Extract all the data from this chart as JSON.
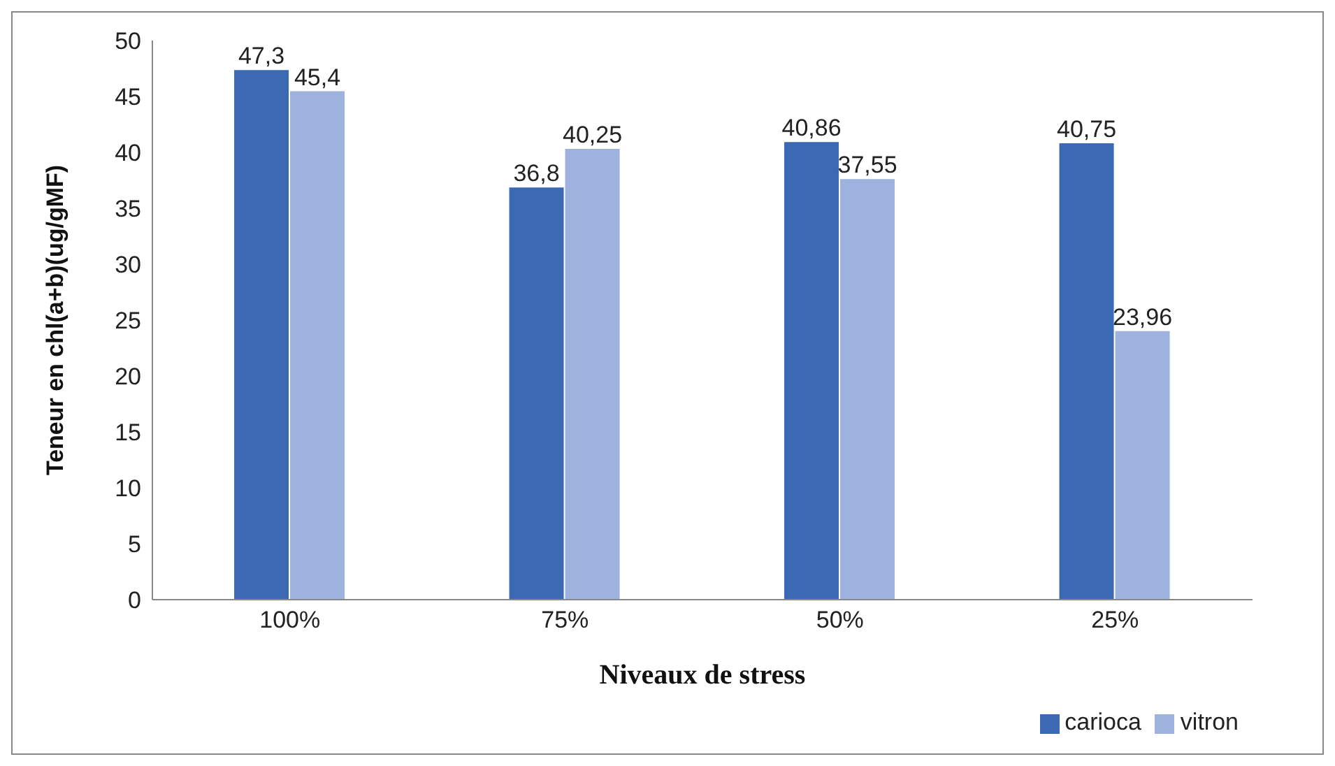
{
  "chart_data": {
    "type": "bar",
    "xlabel": "Niveaux de stress",
    "ylabel": "Teneur en chl(a+b)(ug/gMF)",
    "categories": [
      "100%",
      "75%",
      "50%",
      "25%"
    ],
    "series": [
      {
        "name": "carioca",
        "color": "#3b69b3",
        "values": [
          47.3,
          36.8,
          40.86,
          40.75
        ],
        "value_labels": [
          "47,3",
          "36,8",
          "40,86",
          "40,75"
        ]
      },
      {
        "name": "vitron",
        "color": "#9db2dd",
        "values": [
          45.4,
          40.25,
          37.55,
          23.96
        ],
        "value_labels": [
          "45,4",
          "40,25",
          "37,55",
          "23,96"
        ]
      }
    ],
    "ylim": [
      0,
      50
    ],
    "yticks": [
      0,
      5,
      10,
      15,
      20,
      25,
      30,
      35,
      40,
      45,
      50
    ],
    "grid": false,
    "legend": "bottom right"
  }
}
